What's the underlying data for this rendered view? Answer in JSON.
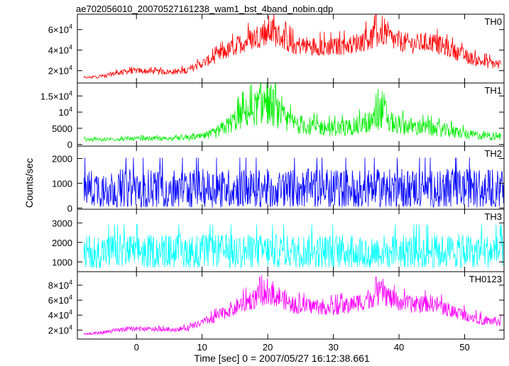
{
  "title": "ae702056010_20070527161238_wam1_bst_4band_nobin.qdp",
  "xlabel": "Time [sec] 0 = 2007/05/27 16:12:38.661",
  "ylabel": "Counts/sec",
  "chart_data": [
    {
      "type": "line",
      "name": "TH0",
      "color": "#ff0000",
      "xlim": [
        -9,
        56
      ],
      "ylim": [
        8000,
        75000
      ],
      "yticks": [
        20000,
        40000,
        60000
      ],
      "ytick_labels": [
        [
          "2×10",
          "4"
        ],
        [
          "4×10",
          "4"
        ],
        [
          "6×10",
          "4"
        ]
      ],
      "x": [
        -8,
        -5,
        -2,
        0,
        3,
        6,
        8,
        10,
        12,
        14,
        16,
        18,
        20,
        22,
        24,
        27,
        30,
        33,
        36,
        37.5,
        39,
        42,
        45,
        48,
        51,
        53,
        55.5
      ],
      "y": [
        13000,
        15000,
        19000,
        20000,
        19000,
        19000,
        21000,
        27000,
        33000,
        40000,
        47000,
        52000,
        60000,
        53000,
        45000,
        44000,
        43000,
        46000,
        53000,
        60000,
        50000,
        46000,
        48000,
        40000,
        32000,
        28000,
        26000
      ],
      "spread": [
        0.05,
        0.1,
        0.1,
        0.1,
        0.1,
        0.1,
        0.12,
        0.12,
        0.14,
        0.15,
        0.15,
        0.16,
        0.18,
        0.16,
        0.15,
        0.15,
        0.15,
        0.15,
        0.16,
        0.18,
        0.16,
        0.15,
        0.15,
        0.15,
        0.14,
        0.14,
        0.14
      ]
    },
    {
      "type": "line",
      "name": "TH1",
      "color": "#00ee00",
      "xlim": [
        -9,
        56
      ],
      "ylim": [
        -500,
        19000
      ],
      "yticks": [
        0,
        5000,
        10000,
        15000
      ],
      "ytick_labels": [
        [
          "0",
          ""
        ],
        [
          "5000",
          ""
        ],
        [
          "10",
          "4"
        ],
        [
          "1.5×10",
          "4"
        ]
      ],
      "x": [
        -8,
        -5,
        0,
        5,
        8,
        10,
        12,
        14,
        16,
        18,
        20,
        22,
        24,
        27,
        30,
        33,
        36,
        37.5,
        39,
        42,
        45,
        48,
        51,
        55.5
      ],
      "y": [
        1500,
        1600,
        1800,
        1900,
        2000,
        2500,
        3500,
        6000,
        9000,
        11000,
        13500,
        8500,
        6500,
        5500,
        5000,
        5500,
        7500,
        11000,
        6500,
        5500,
        5000,
        4000,
        3000,
        2500
      ],
      "spread": [
        0.25,
        0.25,
        0.25,
        0.25,
        0.28,
        0.3,
        0.35,
        0.35,
        0.35,
        0.35,
        0.4,
        0.35,
        0.35,
        0.35,
        0.35,
        0.35,
        0.35,
        0.4,
        0.35,
        0.35,
        0.35,
        0.35,
        0.35,
        0.35
      ]
    },
    {
      "type": "line",
      "name": "TH2",
      "color": "#0000ff",
      "xlim": [
        -9,
        56
      ],
      "ylim": [
        -50,
        2500
      ],
      "yticks": [
        0,
        1000,
        2000
      ],
      "ytick_labels": [
        [
          "0",
          ""
        ],
        [
          "1000",
          ""
        ],
        [
          "2000",
          ""
        ]
      ],
      "x": [
        -8,
        56
      ],
      "y": [
        800,
        800
      ],
      "spread": [
        0.7,
        0.7
      ]
    },
    {
      "type": "line",
      "name": "TH3",
      "color": "#00ffff",
      "xlim": [
        -9,
        56
      ],
      "ylim": [
        500,
        3700
      ],
      "yticks": [
        1000,
        2000,
        3000
      ],
      "ytick_labels": [
        [
          "1000",
          ""
        ],
        [
          "2000",
          ""
        ],
        [
          "3000",
          ""
        ]
      ],
      "x": [
        -8,
        56
      ],
      "y": [
        1550,
        1550
      ],
      "spread": [
        0.4,
        0.4
      ]
    },
    {
      "type": "line",
      "name": "TH0123",
      "color": "#ff00ff",
      "xlim": [
        -9,
        56
      ],
      "ylim": [
        8000,
        98000
      ],
      "yticks": [
        20000,
        40000,
        60000,
        80000
      ],
      "ytick_labels": [
        [
          "2×10",
          "4"
        ],
        [
          "4×10",
          "4"
        ],
        [
          "6×10",
          "4"
        ],
        [
          "8×10",
          "4"
        ]
      ],
      "x": [
        -8,
        -5,
        -2,
        0,
        3,
        6,
        8,
        10,
        12,
        14,
        16,
        18,
        20,
        22,
        24,
        27,
        30,
        33,
        36,
        37.5,
        39,
        42,
        45,
        48,
        51,
        53,
        55.5
      ],
      "y": [
        14000,
        17000,
        21000,
        22000,
        21000,
        21000,
        23000,
        30000,
        37000,
        46000,
        55000,
        62000,
        73000,
        63000,
        53000,
        52000,
        50000,
        55000,
        64000,
        72000,
        60000,
        54000,
        56000,
        46000,
        38000,
        33000,
        31000
      ],
      "spread": [
        0.05,
        0.1,
        0.1,
        0.1,
        0.1,
        0.1,
        0.12,
        0.12,
        0.14,
        0.15,
        0.15,
        0.16,
        0.18,
        0.16,
        0.15,
        0.15,
        0.15,
        0.15,
        0.16,
        0.18,
        0.16,
        0.15,
        0.15,
        0.15,
        0.14,
        0.14,
        0.14
      ]
    }
  ],
  "xaxis": {
    "xlim": [
      -9,
      56
    ],
    "ticks": [
      0,
      10,
      20,
      30,
      40,
      50
    ],
    "tick_labels": [
      "0",
      "10",
      "20",
      "30",
      "40",
      "50"
    ]
  }
}
